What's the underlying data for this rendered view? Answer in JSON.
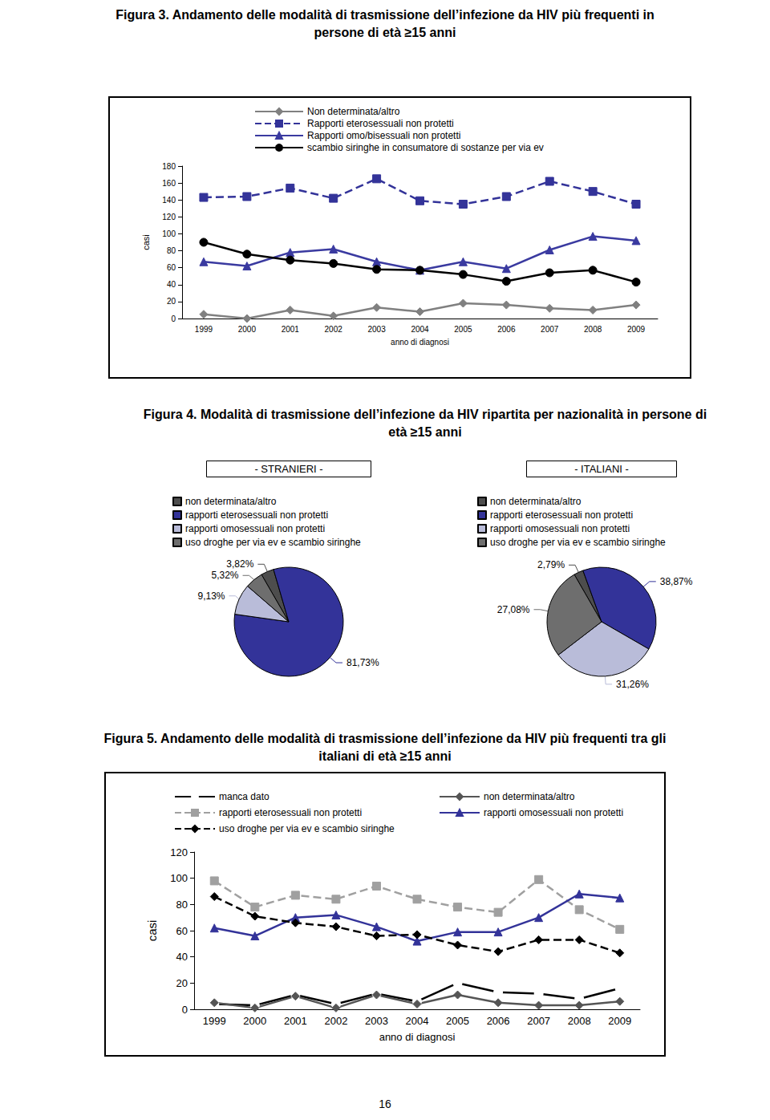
{
  "chart_data": [
    {
      "type": "line",
      "title": "Figura 3. Andamento delle modalità di trasmissione dell’infezione da HIV più frequenti in persone di età ≥15 anni",
      "x_label": "anno di diagnosi",
      "y_label": "casi",
      "categories": [
        "1999",
        "2000",
        "2001",
        "2002",
        "2003",
        "2004",
        "2005",
        "2006",
        "2007",
        "2008",
        "2009"
      ],
      "series": [
        {
          "name": "Non determinata/altro",
          "color": "#808080",
          "marker": "diamond",
          "line_style": "solid",
          "values": [
            5,
            0,
            10,
            3,
            13,
            8,
            18,
            16,
            12,
            10,
            16
          ]
        },
        {
          "name": "Rapporti eterosessuali non protetti",
          "color": "#333399",
          "marker": "square",
          "line_style": "dashed",
          "values": [
            143,
            144,
            154,
            142,
            165,
            139,
            135,
            144,
            162,
            150,
            135
          ]
        },
        {
          "name": "Rapporti omo/bisessuali non protetti",
          "color": "#3a3aa0",
          "marker": "triangle",
          "line_style": "solid",
          "values": [
            67,
            62,
            78,
            82,
            67,
            57,
            67,
            59,
            81,
            97,
            92
          ]
        },
        {
          "name": "scambio siringhe in consumatore di sostanze per via ev",
          "color": "#000000",
          "marker": "circle",
          "line_style": "solid",
          "values": [
            90,
            76,
            69,
            65,
            58,
            57,
            52,
            44,
            54,
            57,
            43
          ]
        }
      ],
      "ylim": [
        0,
        180
      ],
      "yticks": [
        0,
        20,
        40,
        60,
        80,
        100,
        120,
        140,
        160,
        180
      ],
      "grid": false,
      "legend": "top"
    },
    {
      "type": "pie",
      "title": "Figura 4. Modalità di trasmissione dell’infezione da HIV ripartita per nazionalità in persone di età ≥15 anni",
      "subtitle": "- STRANIERI -",
      "categories": [
        "non determinata/altro",
        "rapporti eterosessuali non protetti",
        "rapporti omosessuali non protetti",
        "uso droghe per via ev e scambio siringhe"
      ],
      "values": [
        3.82,
        81.73,
        9.13,
        5.32
      ],
      "value_labels": [
        "3,82%",
        "81,73%",
        "9,13%",
        "5,32%"
      ],
      "colors": [
        "#4d4d4d",
        "#333399",
        "#b9bcd9",
        "#6e6e6e"
      ],
      "data_labels": true,
      "legend": "top-left"
    },
    {
      "type": "pie",
      "subtitle": "- ITALIANI -",
      "categories": [
        "non determinata/altro",
        "rapporti eterosessuali non protetti",
        "rapporti omosessuali non protetti",
        "uso droghe per via ev e scambio siringhe"
      ],
      "values": [
        2.79,
        38.87,
        31.26,
        27.08
      ],
      "value_labels": [
        "2,79%",
        "38,87%",
        "31,26%",
        "27,08%"
      ],
      "colors": [
        "#4d4d4d",
        "#333399",
        "#b9bcd9",
        "#6e6e6e"
      ],
      "data_labels": true,
      "legend": "top-left"
    },
    {
      "type": "line",
      "title": "Figura 5. Andamento delle modalità di trasmissione dell’infezione da HIV più frequenti tra gli italiani di età ≥15 anni",
      "x_label": "anno di diagnosi",
      "y_label": "casi",
      "categories": [
        "1999",
        "2000",
        "2001",
        "2002",
        "2003",
        "2004",
        "2005",
        "2006",
        "2007",
        "2008",
        "2009"
      ],
      "series": [
        {
          "name": "manca dato",
          "color": "#000000",
          "marker": "open_circle",
          "line_style": "solid",
          "values": [
            4,
            3,
            11,
            4,
            12,
            6,
            20,
            13,
            12,
            8,
            16
          ]
        },
        {
          "name": "non determinata/altro",
          "color": "#555555",
          "marker": "diamond",
          "line_style": "solid",
          "values": [
            5,
            1,
            10,
            1,
            11,
            4,
            11,
            5,
            3,
            3,
            6
          ]
        },
        {
          "name": "rapporti eterosessuali non protetti",
          "color": "#a0a0a0",
          "marker": "square",
          "line_style": "dashed",
          "values": [
            98,
            78,
            87,
            84,
            94,
            84,
            78,
            74,
            99,
            76,
            61
          ]
        },
        {
          "name": "rapporti omosessuali non protetti",
          "color": "#333399",
          "marker": "triangle",
          "line_style": "solid",
          "values": [
            62,
            56,
            70,
            72,
            63,
            52,
            59,
            59,
            70,
            88,
            85
          ]
        },
        {
          "name": "uso droghe per via ev e scambio siringhe",
          "color": "#000000",
          "marker": "diamond",
          "line_style": "dashed",
          "values": [
            86,
            71,
            66,
            63,
            56,
            57,
            49,
            44,
            53,
            53,
            43
          ]
        }
      ],
      "ylim": [
        0,
        120
      ],
      "yticks": [
        0,
        20,
        40,
        60,
        80,
        100,
        120
      ],
      "grid": false,
      "legend": "top"
    }
  ],
  "page_number": "16"
}
